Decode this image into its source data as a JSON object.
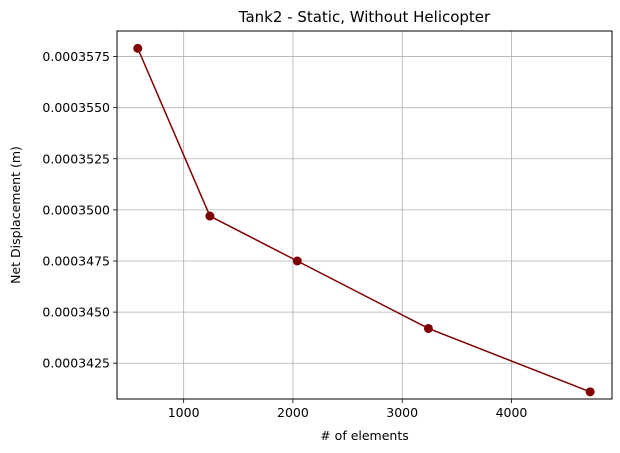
{
  "chart_data": {
    "type": "line",
    "title": "Tank2 - Static, Without Helicopter",
    "xlabel": "# of elements",
    "ylabel": "Net Displacement (m)",
    "grid": true,
    "xlim": [
      390,
      4920
    ],
    "ylim": [
      0.00034075,
      0.00035875
    ],
    "x_ticks": [
      1000,
      2000,
      3000,
      4000
    ],
    "x_tick_labels": [
      "1000",
      "2000",
      "3000",
      "4000"
    ],
    "y_ticks": [
      0.0003425,
      0.000345,
      0.0003475,
      0.00035,
      0.0003525,
      0.000355,
      0.0003575
    ],
    "y_tick_labels": [
      "0.0003425",
      "0.0003450",
      "0.0003475",
      "0.0003500",
      "0.0003525",
      "0.0003550",
      "0.0003575"
    ],
    "series": [
      {
        "color": "#800000",
        "marker": "circle",
        "x": [
          580,
          1240,
          2040,
          3240,
          4720
        ],
        "y": [
          0.0003579,
          0.0003497,
          0.0003475,
          0.0003442,
          0.0003411
        ]
      }
    ]
  }
}
